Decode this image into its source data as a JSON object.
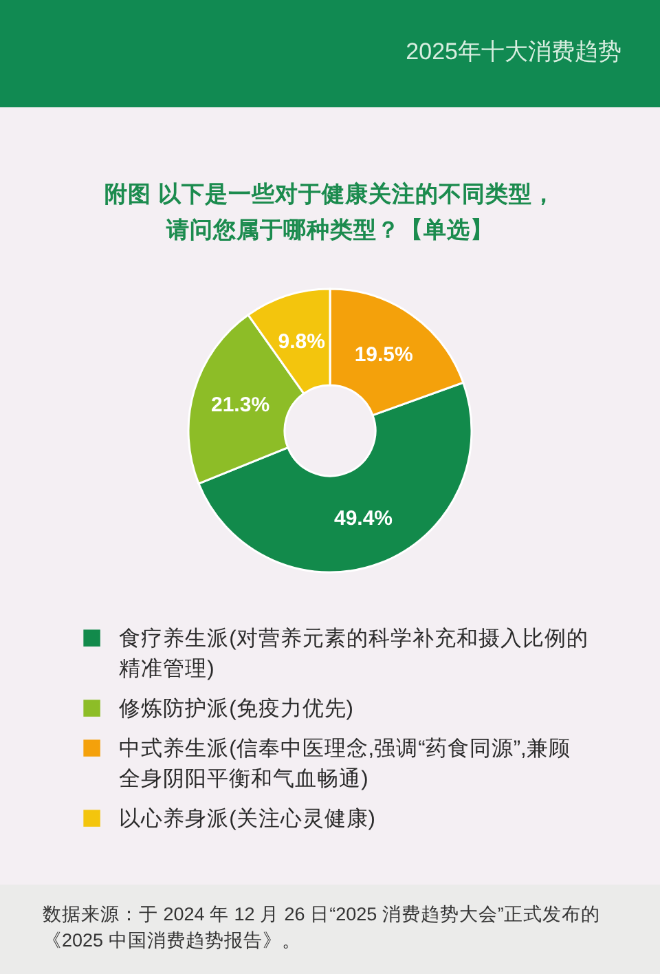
{
  "chart_data": {
    "type": "donut",
    "title": "附图 以下是一些对于健康关注的不同类型，请问您属于哪种类型？【单选】",
    "subtitle": "2025年十大消费趋势",
    "categories": [
      "食疗养生派(对营养元素的科学补充和摄入比例的精准管理)",
      "修炼防护派(免疫力优先)",
      "中式养生派(信奉中医理念,强调“药食同源”,兼顾全身阴阳平衡和气血畅通)",
      "以心养身派(关注心灵健康)"
    ],
    "values": [
      49.4,
      21.3,
      19.5,
      9.8
    ],
    "colors": [
      "#128a4b",
      "#8dbd27",
      "#f4a10b",
      "#f3c50d"
    ],
    "value_labels": [
      "49.4%",
      "21.3%",
      "19.5%",
      "9.8%"
    ],
    "legend": "bottom",
    "annotations": [
      "数据来源：于 2024 年 12 月 26 日“2025 消费趋势大会”正式发布的《2025 中国消费趋势报告》。"
    ]
  }
}
